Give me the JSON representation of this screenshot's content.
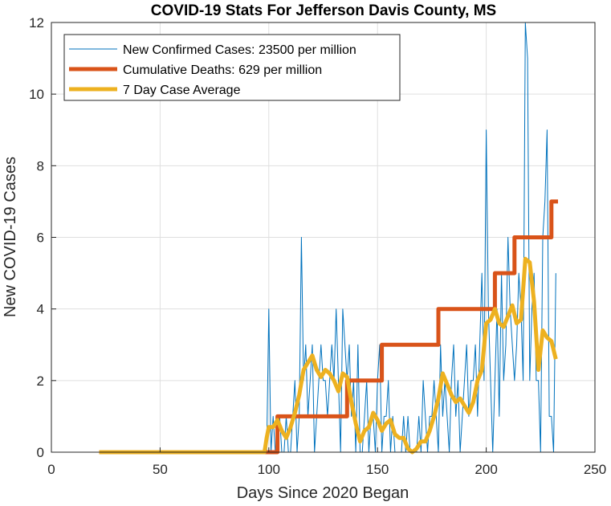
{
  "chart_data": {
    "type": "line",
    "title": "COVID-19 Stats For Jefferson Davis County, MS",
    "xlabel": "Days Since 2020 Began",
    "ylabel": "New COVID-19 Cases",
    "xlim": [
      0,
      250
    ],
    "ylim": [
      0,
      12
    ],
    "xticks": [
      0,
      50,
      100,
      150,
      200,
      250
    ],
    "yticks": [
      0,
      2,
      4,
      6,
      8,
      10,
      12
    ],
    "grid": true,
    "legend_position": "top-left",
    "series": [
      {
        "name": "New Confirmed Cases: 23500 per million",
        "color": "#0072BD",
        "x": [
          22,
          30,
          40,
          50,
          60,
          70,
          80,
          90,
          98,
          99,
          100,
          101,
          102,
          103,
          104,
          105,
          106,
          107,
          108,
          109,
          110,
          111,
          112,
          113,
          114,
          115,
          116,
          117,
          118,
          119,
          120,
          121,
          122,
          123,
          124,
          125,
          126,
          127,
          128,
          129,
          130,
          131,
          132,
          133,
          134,
          135,
          136,
          137,
          138,
          139,
          140,
          141,
          142,
          143,
          144,
          145,
          146,
          147,
          148,
          149,
          150,
          151,
          152,
          153,
          154,
          155,
          156,
          157,
          158,
          159,
          160,
          161,
          162,
          163,
          164,
          165,
          166,
          167,
          168,
          169,
          170,
          171,
          172,
          173,
          174,
          175,
          176,
          177,
          178,
          179,
          180,
          181,
          182,
          183,
          184,
          185,
          186,
          187,
          188,
          189,
          190,
          191,
          192,
          193,
          194,
          195,
          196,
          197,
          198,
          199,
          200,
          201,
          202,
          203,
          204,
          205,
          206,
          207,
          208,
          209,
          210,
          211,
          212,
          213,
          214,
          215,
          216,
          217,
          218,
          219,
          220,
          221,
          222,
          223,
          224,
          225,
          226,
          227,
          228,
          229,
          230,
          231,
          232
        ],
        "values": [
          0,
          0,
          0,
          0,
          0,
          0,
          0,
          0,
          0,
          0,
          4,
          0,
          1,
          0,
          0,
          1,
          0,
          0,
          1,
          0,
          0,
          1,
          2,
          0,
          1,
          6,
          2,
          3,
          1,
          2,
          3,
          0,
          1,
          2,
          3,
          2,
          2,
          1,
          2,
          3,
          2,
          4,
          2,
          0,
          4,
          3,
          2,
          3,
          1,
          2,
          0,
          3,
          0,
          0,
          1,
          2,
          0,
          1,
          1,
          0,
          2,
          3,
          0,
          1,
          1,
          2,
          0,
          1,
          0,
          0,
          0,
          0,
          1,
          0,
          1,
          0,
          0,
          0,
          0,
          1,
          0,
          2,
          1,
          0,
          1,
          1,
          2,
          1,
          0,
          3,
          1,
          2,
          1,
          0,
          2,
          3,
          1,
          2,
          0,
          1,
          2,
          3,
          1,
          2,
          2,
          3,
          1,
          3,
          5,
          2,
          9,
          4,
          2,
          0,
          2,
          4,
          1,
          5,
          2,
          3,
          6,
          4,
          3,
          2,
          3,
          5,
          4,
          2,
          12,
          11,
          2,
          4,
          5,
          2,
          2,
          0,
          6,
          7,
          9,
          1,
          1,
          0,
          5
        ]
      },
      {
        "name": "Cumulative Deaths: 629 per million",
        "color": "#D95319",
        "x": [
          22,
          102,
          104,
          104,
          136,
          136,
          152,
          152,
          178,
          178,
          204,
          204,
          213,
          213,
          230,
          230,
          233
        ],
        "values": [
          0,
          0,
          0,
          1,
          1,
          2,
          2,
          3,
          3,
          4,
          4,
          5,
          5,
          6,
          6,
          7,
          7
        ]
      },
      {
        "name": "7 Day Case Average",
        "color": "#EDB120",
        "x": [
          22,
          40,
          60,
          80,
          98,
          99,
          100,
          102,
          104,
          106,
          108,
          110,
          112,
          114,
          116,
          118,
          120,
          122,
          124,
          126,
          128,
          130,
          132,
          134,
          136,
          138,
          140,
          142,
          144,
          146,
          148,
          150,
          152,
          154,
          156,
          158,
          160,
          162,
          164,
          166,
          168,
          170,
          172,
          174,
          176,
          178,
          180,
          182,
          184,
          186,
          188,
          190,
          192,
          194,
          196,
          198,
          200,
          202,
          204,
          206,
          208,
          210,
          212,
          214,
          216,
          218,
          220,
          222,
          224,
          226,
          228,
          230,
          232
        ],
        "values": [
          0,
          0,
          0,
          0,
          0,
          0.4,
          0.7,
          0.7,
          0.9,
          0.6,
          0.4,
          0.7,
          1.1,
          1.6,
          2.3,
          2.5,
          2.7,
          2.3,
          2.1,
          2.3,
          2.2,
          2.0,
          1.7,
          2.2,
          2.1,
          1.4,
          0.8,
          0.3,
          0.6,
          0.7,
          1.1,
          0.9,
          0.6,
          0.8,
          0.9,
          0.5,
          0.4,
          0.4,
          0.1,
          0.0,
          0.1,
          0.3,
          0.3,
          0.6,
          1.0,
          1.5,
          2.2,
          1.9,
          1.6,
          1.4,
          1.5,
          1.3,
          1.1,
          1.4,
          2.0,
          2.3,
          3.6,
          3.7,
          4.0,
          3.6,
          3.5,
          3.8,
          4.1,
          3.6,
          3.7,
          5.4,
          5.3,
          4.2,
          2.3,
          3.4,
          3.2,
          3.1,
          2.6
        ]
      }
    ]
  }
}
